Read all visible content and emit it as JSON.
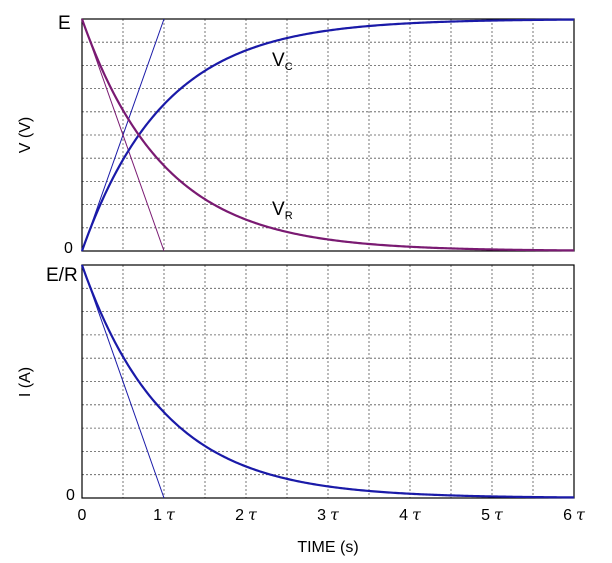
{
  "chart_data": [
    {
      "type": "line",
      "ylabel": "V (V)",
      "xlim": [
        0,
        6
      ],
      "ylim": [
        0,
        1
      ],
      "x_ticks": [
        "0",
        "1",
        "2",
        "3",
        "4",
        "5",
        "6"
      ],
      "y_tick_labels": {
        "top": "E",
        "bottom": "0"
      },
      "grid": true,
      "series": [
        {
          "name": "VC",
          "label_main": "V",
          "label_sub": "C",
          "function": "1 - exp(-t)",
          "color": "#1a1aa8",
          "x": [
            0,
            0.5,
            1,
            1.5,
            2,
            3,
            4,
            5,
            6
          ],
          "values": [
            0,
            0.393,
            0.632,
            0.777,
            0.865,
            0.95,
            0.982,
            0.993,
            0.998
          ]
        },
        {
          "name": "VR",
          "label_main": "V",
          "label_sub": "R",
          "function": "exp(-t)",
          "color": "#7a1a72",
          "x": [
            0,
            0.5,
            1,
            1.5,
            2,
            3,
            4,
            5,
            6
          ],
          "values": [
            1,
            0.607,
            0.368,
            0.223,
            0.135,
            0.05,
            0.018,
            0.007,
            0.002
          ]
        }
      ],
      "tangent_lines": [
        {
          "from": [
            0,
            0
          ],
          "to": [
            1,
            1
          ],
          "color": "#1a1aa8"
        },
        {
          "from": [
            0,
            1
          ],
          "to": [
            1,
            0
          ],
          "color": "#7a1a72"
        }
      ]
    },
    {
      "type": "line",
      "ylabel": "I (A)",
      "xlabel": "TIME (s)",
      "xlim": [
        0,
        6
      ],
      "ylim": [
        0,
        1
      ],
      "x_ticks": [
        "0",
        "1",
        "2",
        "3",
        "4",
        "5",
        "6"
      ],
      "x_tick_suffix": "τ",
      "y_tick_labels": {
        "top": "E/R",
        "bottom": "0"
      },
      "grid": true,
      "series": [
        {
          "function": "exp(-t)",
          "color": "#1a1aa8",
          "x": [
            0,
            0.5,
            1,
            1.5,
            2,
            3,
            4,
            5,
            6
          ],
          "values": [
            1,
            0.607,
            0.368,
            0.223,
            0.135,
            0.05,
            0.018,
            0.007,
            0.002
          ]
        }
      ],
      "tangent_lines": [
        {
          "from": [
            0,
            1
          ],
          "to": [
            1,
            0
          ],
          "color": "#1a1aa8"
        }
      ]
    }
  ]
}
